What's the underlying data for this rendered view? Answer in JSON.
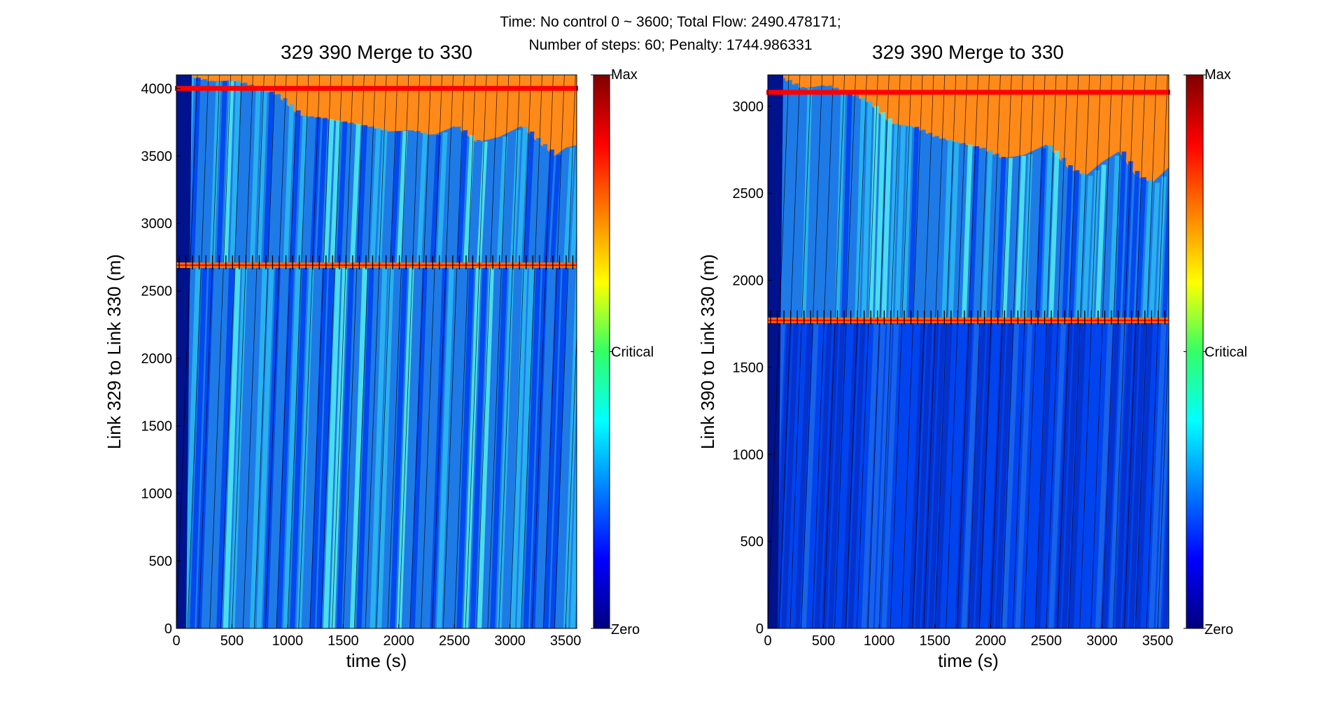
{
  "figure": {
    "suptitle_line1": "Time: No control 0 ~ 3600; Total Flow: 2490.478171;",
    "suptitle_line2": "Number of steps: 60; Penalty: 1744.986331"
  },
  "colors": {
    "deep_blue": "#00128c",
    "blue": "#0044ee",
    "mid_blue": "#1e7ae6",
    "light_blue": "#2ab6f0",
    "cyan": "#4fe8ee",
    "orange": "#ff8a1a",
    "red": "#ff0000",
    "interface_orange": "#ff6a00"
  },
  "colorbar": {
    "type": "colormap-jet",
    "labels": [
      "Max",
      "Critical",
      "Zero"
    ]
  },
  "chart_data": [
    {
      "type": "heatmap",
      "title": "329 390 Merge to 330",
      "xlabel": "time (s)",
      "ylabel": "Link 329 to Link 330   (m)",
      "xlim": [
        0,
        3600
      ],
      "ylim": [
        0,
        4100
      ],
      "xticks": [
        0,
        500,
        1000,
        1500,
        2000,
        2500,
        3000,
        3500
      ],
      "yticks": [
        0,
        500,
        1000,
        1500,
        2000,
        2500,
        3000,
        3500,
        4000
      ],
      "link_boundary_m": 2690,
      "red_marker_line_m": 4000,
      "queue_front": {
        "t": [
          0,
          150,
          300,
          500,
          700,
          900,
          1100,
          1300,
          1500,
          1700,
          1900,
          2100,
          2300,
          2500,
          2700,
          2900,
          3100,
          3250,
          3400,
          3500,
          3600
        ],
        "y": [
          4100,
          4080,
          4050,
          4060,
          4010,
          3950,
          3800,
          3780,
          3750,
          3720,
          3680,
          3690,
          3650,
          3720,
          3600,
          3640,
          3720,
          3600,
          3500,
          3560,
          3580
        ]
      },
      "lower_density": "low",
      "upper_density": "medium"
    },
    {
      "type": "heatmap",
      "title": "329 390 Merge to 330",
      "xlabel": "time (s)",
      "ylabel": "Link 390 to Link 330   (m)",
      "xlim": [
        0,
        3600
      ],
      "ylim": [
        0,
        3180
      ],
      "xticks": [
        0,
        500,
        1000,
        1500,
        2000,
        2500,
        3000,
        3500
      ],
      "yticks": [
        0,
        500,
        1000,
        1500,
        2000,
        2500,
        3000
      ],
      "link_boundary_m": 1770,
      "red_marker_line_m": 3080,
      "queue_front": {
        "t": [
          0,
          150,
          300,
          500,
          700,
          900,
          1100,
          1300,
          1500,
          1700,
          1900,
          2100,
          2300,
          2500,
          2700,
          2850,
          3000,
          3150,
          3300,
          3450,
          3600
        ],
        "y": [
          3180,
          3150,
          3100,
          3120,
          3080,
          3020,
          2900,
          2880,
          2820,
          2790,
          2760,
          2700,
          2720,
          2780,
          2640,
          2600,
          2680,
          2740,
          2600,
          2560,
          2650
        ]
      },
      "lower_density": "very-low",
      "upper_density": "medium"
    }
  ]
}
